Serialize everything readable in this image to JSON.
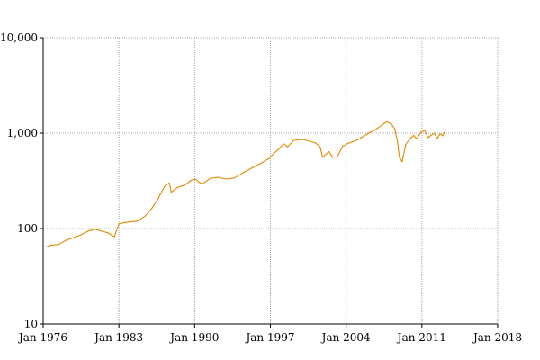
{
  "chart_data": {
    "type": "line",
    "title": "",
    "xlabel": "",
    "ylabel": "",
    "y_scale": "log",
    "ylim": [
      10,
      10000
    ],
    "xlim": [
      "1976-01",
      "2018-01"
    ],
    "grid": true,
    "y_ticks": [
      {
        "value": 10,
        "label": "10"
      },
      {
        "value": 100,
        "label": "100"
      },
      {
        "value": 1000,
        "label": "1,000"
      },
      {
        "value": 10000,
        "label": "10,000"
      }
    ],
    "x_ticks": [
      {
        "value": "1976-01",
        "label": "Jan 1976"
      },
      {
        "value": "1983-01",
        "label": "Jan 1983"
      },
      {
        "value": "1990-01",
        "label": "Jan 1990"
      },
      {
        "value": "1997-01",
        "label": "Jan 1997"
      },
      {
        "value": "2004-01",
        "label": "Jan 2004"
      },
      {
        "value": "2011-01",
        "label": "Jan 2011"
      },
      {
        "value": "2018-01",
        "label": "Jan 2018"
      }
    ],
    "colors": {
      "series": "#e08a00",
      "grid": "#aaaaaa",
      "axis": "#000000"
    },
    "series": [
      {
        "x": [
          "1976-04",
          "1976-10",
          "1977-06",
          "1978-02",
          "1978-10",
          "1979-06",
          "1980-04",
          "1980-11",
          "1981-06",
          "1982-01",
          "1982-08",
          "1983-01",
          "1983-06",
          "1984-03",
          "1984-10",
          "1985-06",
          "1986-02",
          "1986-09",
          "1987-04",
          "1987-09",
          "1987-11",
          "1988-06",
          "1989-02",
          "1989-09",
          "1990-02",
          "1990-07",
          "1990-10",
          "1991-06",
          "1992-03",
          "1992-12",
          "1993-09",
          "1994-07",
          "1995-04",
          "1996-02",
          "1996-11",
          "1997-04",
          "1997-10",
          "1998-04",
          "1998-08",
          "1999-03",
          "1999-10",
          "2000-03",
          "2000-09",
          "2001-03",
          "2001-08",
          "2001-11",
          "2002-06",
          "2002-10",
          "2003-03",
          "2003-09",
          "2004-04",
          "2004-11",
          "2005-06",
          "2006-02",
          "2006-09",
          "2007-04",
          "2007-10",
          "2008-03",
          "2008-07",
          "2008-10",
          "2008-12",
          "2009-03",
          "2009-07",
          "2009-12",
          "2010-04",
          "2010-07",
          "2010-12",
          "2011-04",
          "2011-08",
          "2011-11",
          "2012-03",
          "2012-06",
          "2012-09",
          "2012-12",
          "2013-03"
        ],
        "y": [
          64,
          67,
          68,
          75,
          80,
          85,
          95,
          98,
          94,
          90,
          82,
          112,
          115,
          118,
          120,
          135,
          165,
          210,
          280,
          300,
          240,
          270,
          285,
          320,
          330,
          300,
          295,
          335,
          345,
          330,
          340,
          385,
          430,
          480,
          540,
          600,
          680,
          770,
          720,
          840,
          860,
          850,
          820,
          790,
          720,
          560,
          640,
          560,
          560,
          730,
          790,
          830,
          900,
          1000,
          1080,
          1200,
          1320,
          1250,
          1100,
          800,
          560,
          500,
          760,
          880,
          950,
          870,
          1020,
          1070,
          900,
          950,
          1000,
          880,
          980,
          940,
          1060
        ]
      }
    ]
  }
}
